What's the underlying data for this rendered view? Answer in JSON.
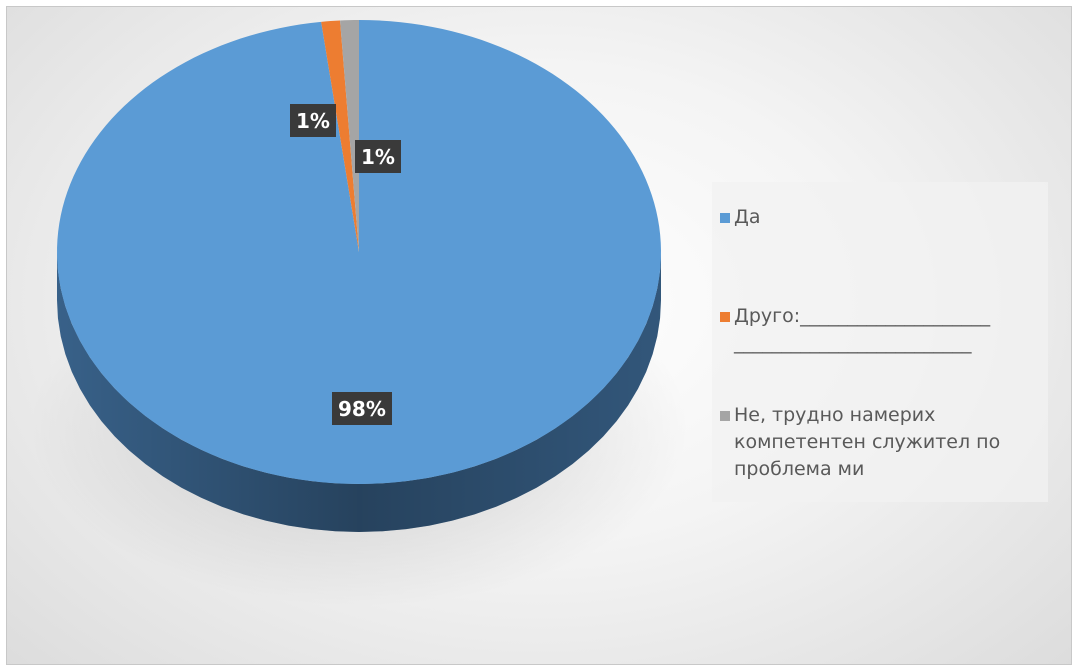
{
  "chart_data": {
    "type": "pie",
    "style": "3d",
    "title": "",
    "start_angle_deg": 0,
    "direction": "clockwise",
    "legend_position": "right",
    "slices": [
      {
        "label": "Да",
        "value": 98,
        "display": "98%",
        "color": "#5b9bd5",
        "side_color": "#3b6690"
      },
      {
        "label": "Друго:____________________\n_________________________",
        "value": 1,
        "display": "1%",
        "color": "#ed7d31",
        "side_color": "#b25c22"
      },
      {
        "label": "Не, трудно намерих компетентен служител по проблема ми",
        "value": 1,
        "display": "1%",
        "color": "#a5a5a5",
        "side_color": "#7c7c7c"
      }
    ]
  }
}
